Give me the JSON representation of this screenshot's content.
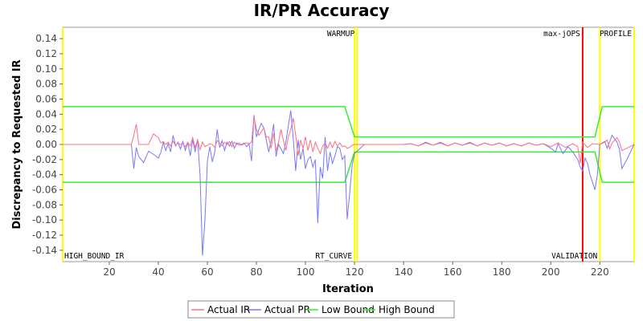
{
  "chart_data": {
    "type": "line",
    "title": "IR/PR Accuracy",
    "xlabel": "Iteration",
    "ylabel": "Discrepancy to Requested IR",
    "xlim": [
      1,
      234
    ],
    "ylim": [
      -0.155,
      0.155
    ],
    "x_ticks": [
      20,
      40,
      60,
      80,
      100,
      120,
      140,
      160,
      180,
      200,
      220
    ],
    "y_ticks": [
      -0.14,
      -0.12,
      -0.1,
      -0.08,
      -0.06,
      -0.04,
      -0.02,
      0.0,
      0.02,
      0.04,
      0.06,
      0.08,
      0.1,
      0.12,
      0.14
    ],
    "y_tick_labels": [
      "-0.14",
      "-0.12",
      "-0.10",
      "-0.08",
      "-0.06",
      "-0.04",
      "-0.02",
      "0.00",
      "0.02",
      "0.04",
      "0.06",
      "0.08",
      "0.10",
      "0.12",
      "0.14"
    ],
    "grid": false,
    "legend_position": "bottom",
    "series": [
      {
        "name": "Actual IR",
        "color": "#ff6f7f",
        "points": [
          [
            1,
            0
          ],
          [
            29,
            0
          ],
          [
            30,
            0.012
          ],
          [
            31,
            0.027
          ],
          [
            32,
            0
          ],
          [
            34,
            0
          ],
          [
            36,
            0
          ],
          [
            38,
            0.014
          ],
          [
            40,
            0.009
          ],
          [
            41,
            0.002
          ],
          [
            42,
            0.004
          ],
          [
            43,
            0
          ],
          [
            44,
            0.003
          ],
          [
            45,
            -0.002
          ],
          [
            46,
            0.004
          ],
          [
            47,
            -0.001
          ],
          [
            48,
            0.002
          ],
          [
            49,
            0
          ],
          [
            50,
            0.001
          ],
          [
            51,
            -0.003
          ],
          [
            52,
            0.003
          ],
          [
            53,
            -0.002
          ],
          [
            54,
            0.009
          ],
          [
            55,
            -0.004
          ],
          [
            56,
            0.006
          ],
          [
            57,
            -0.007
          ],
          [
            58,
            0.003
          ],
          [
            59,
            -0.003
          ],
          [
            60,
            -0.001
          ],
          [
            61,
            0.001
          ],
          [
            62,
            0
          ],
          [
            63,
            -0.004
          ],
          [
            64,
            0.005
          ],
          [
            65,
            0.002
          ],
          [
            66,
            -0.002
          ],
          [
            67,
            0.003
          ],
          [
            68,
            0
          ],
          [
            69,
            0.004
          ],
          [
            70,
            -0.003
          ],
          [
            71,
            0.003
          ],
          [
            72,
            0
          ],
          [
            73,
            0.002
          ],
          [
            74,
            -0.001
          ],
          [
            75,
            0.001
          ],
          [
            76,
            0.002
          ],
          [
            77,
            0.001
          ],
          [
            78,
            0.003
          ],
          [
            79,
            0.036
          ],
          [
            80,
            0.02
          ],
          [
            81,
            0.012
          ],
          [
            82,
            0.017
          ],
          [
            83,
            0.022
          ],
          [
            84,
            0.01
          ],
          [
            85,
            0.01
          ],
          [
            86,
            -0.005
          ],
          [
            87,
            0.015
          ],
          [
            88,
            -0.009
          ],
          [
            89,
            0.003
          ],
          [
            90,
            0.02
          ],
          [
            91,
            0.005
          ],
          [
            92,
            -0.008
          ],
          [
            93,
            0.01
          ],
          [
            94,
            0.02
          ],
          [
            95,
            0.035
          ],
          [
            96,
            0.012
          ],
          [
            97,
            -0.015
          ],
          [
            98,
            0.006
          ],
          [
            99,
            -0.005
          ],
          [
            100,
            0.01
          ],
          [
            101,
            -0.008
          ],
          [
            102,
            0.006
          ],
          [
            103,
            -0.01
          ],
          [
            104,
            0.003
          ],
          [
            105,
            -0.005
          ],
          [
            106,
            -0.012
          ],
          [
            107,
            -0.002
          ],
          [
            108,
            0.002
          ],
          [
            109,
            -0.005
          ],
          [
            110,
            0.003
          ],
          [
            111,
            -0.004
          ],
          [
            112,
            0.004
          ],
          [
            113,
            -0.002
          ],
          [
            114,
            0.002
          ],
          [
            115,
            -0.003
          ],
          [
            116,
            -0.002
          ],
          [
            117,
            -0.005
          ],
          [
            118,
            -0.004
          ],
          [
            119,
            -0.001
          ],
          [
            120,
            0
          ],
          [
            124,
            0
          ],
          [
            130,
            0
          ],
          [
            140,
            0
          ],
          [
            143,
            0.001
          ],
          [
            146,
            -0.002
          ],
          [
            149,
            0.002
          ],
          [
            152,
            -0.001
          ],
          [
            155,
            0.003
          ],
          [
            158,
            -0.002
          ],
          [
            161,
            0.002
          ],
          [
            164,
            -0.001
          ],
          [
            167,
            0.003
          ],
          [
            170,
            -0.002
          ],
          [
            173,
            0.002
          ],
          [
            176,
            -0.001
          ],
          [
            179,
            0.002
          ],
          [
            182,
            -0.002
          ],
          [
            185,
            0.001
          ],
          [
            188,
            -0.002
          ],
          [
            191,
            0.002
          ],
          [
            194,
            -0.001
          ],
          [
            197,
            0.001
          ],
          [
            200,
            -0.003
          ],
          [
            203,
            0.002
          ],
          [
            206,
            -0.004
          ],
          [
            209,
            0.001
          ],
          [
            211,
            -0.003
          ],
          [
            212,
            -0.025
          ],
          [
            213,
            0.003
          ],
          [
            215,
            -0.004
          ],
          [
            217,
            0.001
          ],
          [
            220,
            0
          ],
          [
            222,
            0.003
          ],
          [
            223,
            0.006
          ],
          [
            224,
            -0.006
          ],
          [
            225,
            0.002
          ],
          [
            227,
            0.009
          ],
          [
            228,
            0.003
          ],
          [
            229,
            -0.008
          ],
          [
            231,
            -0.005
          ],
          [
            234,
            0
          ]
        ]
      },
      {
        "name": "Actual PR",
        "color": "#7777ff",
        "points": [
          [
            1,
            0
          ],
          [
            29,
            0
          ],
          [
            30,
            -0.032
          ],
          [
            31,
            -0.004
          ],
          [
            32,
            -0.016
          ],
          [
            34,
            -0.024
          ],
          [
            36,
            -0.009
          ],
          [
            38,
            -0.013
          ],
          [
            40,
            -0.018
          ],
          [
            41,
            -0.011
          ],
          [
            42,
            0.003
          ],
          [
            43,
            -0.008
          ],
          [
            44,
            0.001
          ],
          [
            45,
            -0.01
          ],
          [
            46,
            0.012
          ],
          [
            47,
            -0.002
          ],
          [
            48,
            0.003
          ],
          [
            49,
            -0.006
          ],
          [
            50,
            0.004
          ],
          [
            51,
            -0.008
          ],
          [
            52,
            0.003
          ],
          [
            53,
            -0.015
          ],
          [
            54,
            0.006
          ],
          [
            55,
            -0.01
          ],
          [
            56,
            0.007
          ],
          [
            57,
            -0.04
          ],
          [
            58,
            -0.147
          ],
          [
            59,
            -0.1
          ],
          [
            60,
            -0.022
          ],
          [
            61,
            -0.003
          ],
          [
            62,
            -0.023
          ],
          [
            63,
            -0.01
          ],
          [
            64,
            0.02
          ],
          [
            65,
            -0.004
          ],
          [
            66,
            0.005
          ],
          [
            67,
            -0.008
          ],
          [
            68,
            0.003
          ],
          [
            69,
            -0.002
          ],
          [
            70,
            0.004
          ],
          [
            71,
            -0.005
          ],
          [
            72,
            0.002
          ],
          [
            73,
            -0.001
          ],
          [
            74,
            0
          ],
          [
            75,
            0.002
          ],
          [
            76,
            -0.003
          ],
          [
            77,
            0.001
          ],
          [
            78,
            -0.022
          ],
          [
            79,
            0.039
          ],
          [
            80,
            0.01
          ],
          [
            81,
            0.02
          ],
          [
            82,
            0.028
          ],
          [
            83,
            0.022
          ],
          [
            84,
            0.006
          ],
          [
            85,
            -0.01
          ],
          [
            86,
            0.005
          ],
          [
            87,
            0.027
          ],
          [
            88,
            -0.016
          ],
          [
            89,
            0
          ],
          [
            90,
            -0.006
          ],
          [
            91,
            -0.012
          ],
          [
            92,
            0.003
          ],
          [
            93,
            0.025
          ],
          [
            94,
            0.045
          ],
          [
            95,
            0.008
          ],
          [
            96,
            -0.035
          ],
          [
            97,
            0.006
          ],
          [
            98,
            -0.02
          ],
          [
            99,
            -0.005
          ],
          [
            100,
            -0.032
          ],
          [
            101,
            -0.02
          ],
          [
            102,
            -0.016
          ],
          [
            103,
            -0.03
          ],
          [
            104,
            -0.02
          ],
          [
            105,
            -0.104
          ],
          [
            106,
            -0.03
          ],
          [
            107,
            -0.045
          ],
          [
            108,
            0.01
          ],
          [
            109,
            -0.035
          ],
          [
            110,
            -0.01
          ],
          [
            111,
            -0.025
          ],
          [
            112,
            -0.015
          ],
          [
            113,
            -0.003
          ],
          [
            114,
            -0.005
          ],
          [
            115,
            -0.02
          ],
          [
            116,
            -0.015
          ],
          [
            117,
            -0.099
          ],
          [
            118,
            -0.065
          ],
          [
            119,
            -0.028
          ],
          [
            120,
            -0.012
          ],
          [
            124,
            0
          ],
          [
            130,
            0
          ],
          [
            140,
            0
          ],
          [
            143,
            0.001
          ],
          [
            146,
            -0.002
          ],
          [
            149,
            0.003
          ],
          [
            152,
            -0.001
          ],
          [
            155,
            0.002
          ],
          [
            158,
            -0.002
          ],
          [
            161,
            0.002
          ],
          [
            164,
            -0.001
          ],
          [
            167,
            0.002
          ],
          [
            170,
            -0.002
          ],
          [
            173,
            0.002
          ],
          [
            176,
            -0.001
          ],
          [
            179,
            0.002
          ],
          [
            182,
            -0.002
          ],
          [
            185,
            0.001
          ],
          [
            188,
            -0.002
          ],
          [
            191,
            0.002
          ],
          [
            194,
            -0.001
          ],
          [
            197,
            0.001
          ],
          [
            200,
            -0.005
          ],
          [
            202,
            -0.01
          ],
          [
            203,
            0.001
          ],
          [
            205,
            -0.012
          ],
          [
            207,
            -0.003
          ],
          [
            209,
            -0.01
          ],
          [
            211,
            -0.02
          ],
          [
            212,
            -0.03
          ],
          [
            213,
            -0.035
          ],
          [
            214,
            -0.018
          ],
          [
            215,
            -0.025
          ],
          [
            216,
            -0.04
          ],
          [
            217,
            -0.05
          ],
          [
            218,
            -0.06
          ],
          [
            219,
            -0.04
          ],
          [
            220,
            0
          ],
          [
            222,
            0.004
          ],
          [
            223,
            -0.005
          ],
          [
            225,
            0.012
          ],
          [
            227,
            0.003
          ],
          [
            228,
            -0.006
          ],
          [
            229,
            -0.032
          ],
          [
            231,
            -0.02
          ],
          [
            234,
            0
          ]
        ]
      },
      {
        "name": "Low Bound",
        "color": "#33ee33",
        "points": [
          [
            1,
            -0.05
          ],
          [
            116,
            -0.05
          ],
          [
            120,
            -0.01
          ],
          [
            218,
            -0.01
          ],
          [
            221,
            -0.05
          ],
          [
            234,
            -0.05
          ]
        ]
      },
      {
        "name": "High Bound",
        "color": "#33ee33",
        "points": [
          [
            1,
            0.05
          ],
          [
            116,
            0.05
          ],
          [
            120,
            0.01
          ],
          [
            218,
            0.01
          ],
          [
            221,
            0.05
          ],
          [
            234,
            0.05
          ]
        ]
      }
    ],
    "markers": [
      {
        "x": 1,
        "color": "#ffff00",
        "label": "",
        "label_position": "top"
      },
      {
        "x": 120,
        "color": "#ffff00",
        "label": "RT_CURVE",
        "label_position": "bottom"
      },
      {
        "x": 121,
        "color": "#ffff00",
        "label": "WARMUP",
        "label_position": "top"
      },
      {
        "x": 213,
        "color": "#ff0000",
        "label": "max-jOPS",
        "label_position": "top"
      },
      {
        "x": 220,
        "color": "#ffff00",
        "label": "VALIDATION",
        "label_position": "bottom"
      },
      {
        "x": 234,
        "color": "#ffff00",
        "label": "PROFILE",
        "label_position": "top"
      }
    ],
    "annotations": [
      {
        "text": "HIGH_BOUND_IR",
        "position": "bottom-left"
      }
    ]
  }
}
